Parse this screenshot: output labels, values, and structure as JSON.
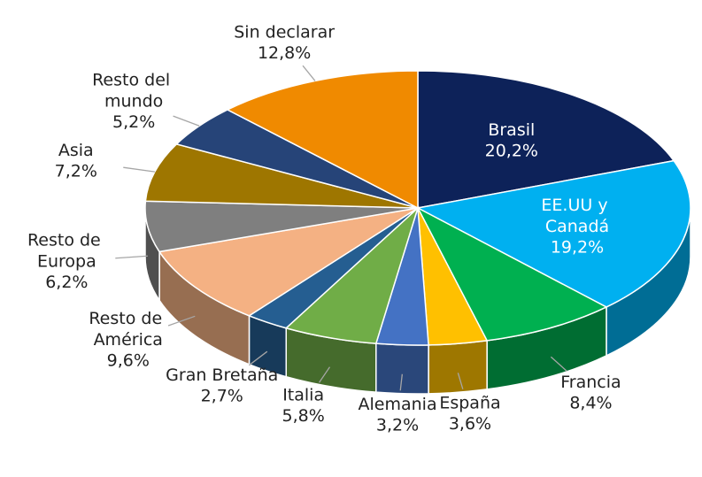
{
  "chart_data": {
    "type": "pie",
    "categories": [
      "Brasil",
      "EE.UU y Canadá",
      "Francia",
      "España",
      "Alemania",
      "Italia",
      "Gran Bretaña",
      "Resto de América",
      "Resto de Europa",
      "Asia",
      "Resto del mundo",
      "Sin declarar"
    ],
    "values": [
      20.2,
      19.2,
      8.4,
      3.6,
      3.2,
      5.8,
      2.7,
      9.6,
      6.2,
      7.2,
      5.2,
      12.8
    ],
    "value_labels": [
      "20,2%",
      "19,2%",
      "8,4%",
      "3,6%",
      "3,2%",
      "5,8%",
      "2,7%",
      "9,6%",
      "6,2%",
      "7,2%",
      "5,2%",
      "12,8%"
    ],
    "colors": [
      "#0d2259",
      "#00b0f0",
      "#00b050",
      "#ffc000",
      "#4472c4",
      "#70ad47",
      "#255e91",
      "#f4b183",
      "#7f7f7f",
      "#9e7600",
      "#264478",
      "#f08a00"
    ]
  }
}
